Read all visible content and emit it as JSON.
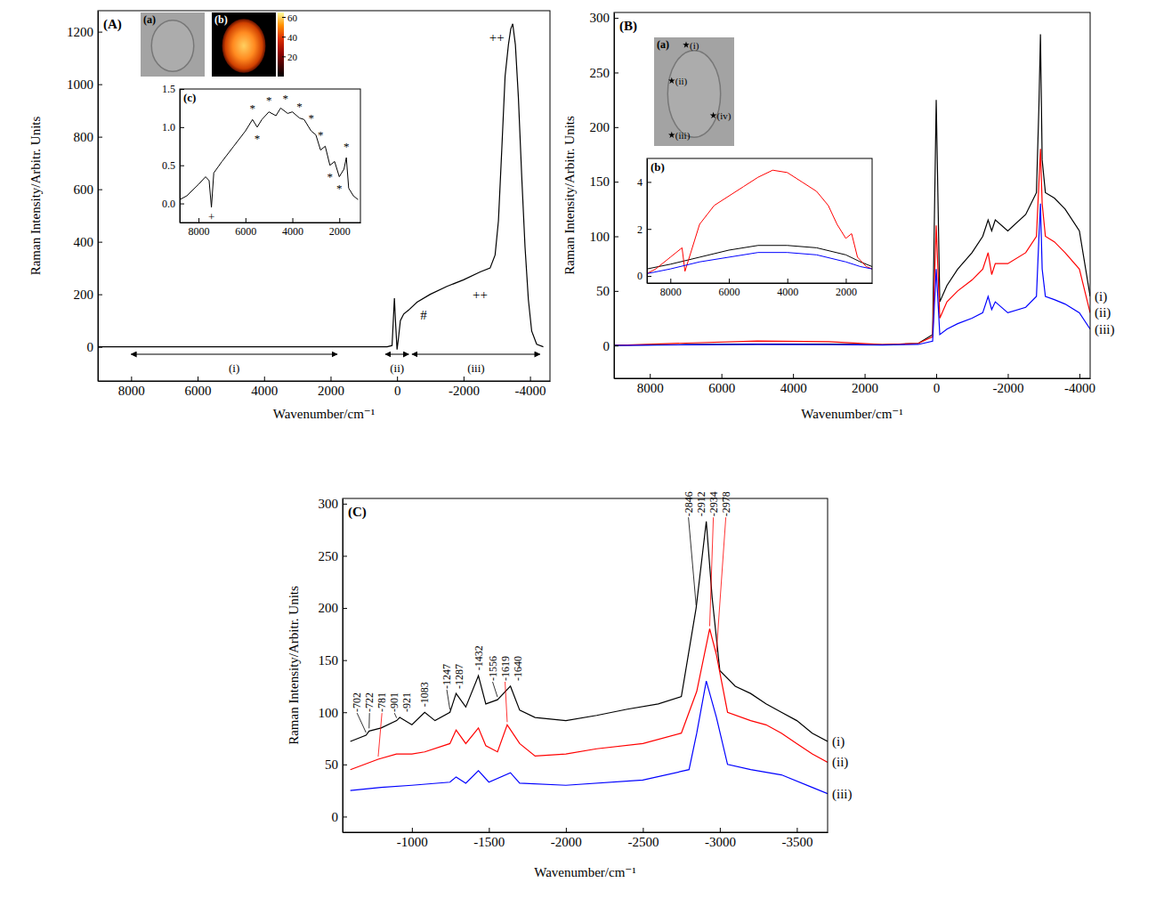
{
  "chart_data": [
    {
      "type": "line",
      "panel": "(A)",
      "x_label": "Wavenumber/cm⁻¹",
      "y_label": "Raman Intensity/Arbitr. Units",
      "xlim": [
        9000,
        -4600
      ],
      "ylim": [
        -130,
        1280
      ],
      "xticks": [
        8000,
        6000,
        4000,
        2000,
        0,
        -2000,
        -4000
      ],
      "yticks": [
        0,
        200,
        400,
        600,
        800,
        1000,
        1200
      ],
      "series": [
        {
          "color": "#000000",
          "x": [
            9000,
            7000,
            5000,
            3000,
            1000,
            300,
            150,
            80,
            40,
            0,
            -40,
            -100,
            -200,
            -350,
            -600,
            -1000,
            -1500,
            -2000,
            -2500,
            -2800,
            -2950,
            -3050,
            -3150,
            -3250,
            -3350,
            -3420,
            -3480,
            -3560,
            -3650,
            -3750,
            -3850,
            -3950,
            -4050,
            -4200,
            -4400
          ],
          "values": [
            0,
            0,
            0,
            0,
            0,
            0,
            5,
            185,
            80,
            -10,
            30,
            100,
            125,
            140,
            170,
            200,
            230,
            255,
            285,
            300,
            350,
            480,
            750,
            1030,
            1150,
            1210,
            1230,
            1150,
            950,
            650,
            380,
            180,
            60,
            10,
            0
          ]
        }
      ],
      "annotations": [
        {
          "text": "#",
          "x": -800,
          "y": 120
        },
        {
          "text": "++",
          "x": -3000,
          "y": 1180
        },
        {
          "text": "++",
          "x": -2500,
          "y": 200
        }
      ],
      "regions": [
        {
          "label": "(i)",
          "from": 8000,
          "to": 1800
        },
        {
          "label": "(ii)",
          "from": 350,
          "to": -350
        },
        {
          "label": "(iii)",
          "from": -450,
          "to": -4300
        }
      ],
      "micrograph": {
        "label": "(a)"
      },
      "raman_map": {
        "label": "(b)",
        "colorbar_range": [
          0,
          65
        ],
        "colorbar_ticks": [
          20,
          40,
          60
        ]
      }
    },
    {
      "type": "line",
      "panel": "(c)",
      "xlim": [
        8800,
        1100
      ],
      "ylim": [
        -0.25,
        1.5
      ],
      "xticks": [
        8000,
        6000,
        4000,
        2000
      ],
      "yticks": [
        {
          "value": 0,
          "label": "0.0"
        },
        0.5,
        {
          "value": 1,
          "label": "1.0"
        },
        1.5
      ],
      "series": [
        {
          "color": "#000000",
          "x": [
            8800,
            8500,
            8000,
            7700,
            7550,
            7450,
            7350,
            7000,
            6500,
            6000,
            5700,
            5500,
            5300,
            5000,
            4700,
            4500,
            4200,
            4000,
            3700,
            3500,
            3200,
            3000,
            2800,
            2600,
            2400,
            2200,
            2000,
            1800,
            1700,
            1600,
            1400,
            1200
          ],
          "values": [
            0.05,
            0.1,
            0.25,
            0.35,
            0.3,
            -0.05,
            0.4,
            0.55,
            0.75,
            0.95,
            1.1,
            1.0,
            1.1,
            1.2,
            1.15,
            1.25,
            1.18,
            1.2,
            1.12,
            1.1,
            0.95,
            0.9,
            0.7,
            0.75,
            0.5,
            0.55,
            0.35,
            0.45,
            0.6,
            0.2,
            0.1,
            0.05
          ]
        }
      ],
      "annotations": [
        {
          "text": "*",
          "x": 5700,
          "y": 1.25
        },
        {
          "text": "*",
          "x": 5500,
          "y": 0.85
        },
        {
          "text": "*",
          "x": 5000,
          "y": 1.35
        },
        {
          "text": "*",
          "x": 4300,
          "y": 1.38
        },
        {
          "text": "*",
          "x": 3700,
          "y": 1.27
        },
        {
          "text": "*",
          "x": 3200,
          "y": 1.12
        },
        {
          "text": "*",
          "x": 2800,
          "y": 0.9
        },
        {
          "text": "*",
          "x": 2400,
          "y": 0.35
        },
        {
          "text": "*",
          "x": 2000,
          "y": 0.2
        },
        {
          "text": "*",
          "x": 1700,
          "y": 0.75
        },
        {
          "text": "+",
          "x": 7450,
          "y": -0.17
        }
      ]
    },
    {
      "type": "line",
      "panel": "(B)",
      "x_label": "Wavenumber/cm⁻¹",
      "y_label": "Raman Intensity/Arbitr. Units",
      "xlim": [
        9000,
        -4300
      ],
      "ylim": [
        -30,
        305
      ],
      "xticks": [
        8000,
        6000,
        4000,
        2000,
        0,
        -2000,
        -4000
      ],
      "yticks": [
        0,
        50,
        100,
        150,
        200,
        250,
        300
      ],
      "series": [
        {
          "name": "(i)",
          "color": "#000000",
          "x": [
            9000,
            7000,
            5000,
            3000,
            1500,
            500,
            100,
            0,
            -100,
            -300,
            -600,
            -1000,
            -1300,
            -1450,
            -1550,
            -1650,
            -2000,
            -2500,
            -2800,
            -2870,
            -2912,
            -2960,
            -3050,
            -3300,
            -3600,
            -4000,
            -4300
          ],
          "values": [
            0.3,
            0.8,
            1.3,
            1.2,
            0.6,
            2,
            10,
            225,
            40,
            55,
            70,
            85,
            100,
            115,
            105,
            115,
            105,
            120,
            140,
            220,
            285,
            170,
            140,
            135,
            125,
            105,
            45
          ]
        },
        {
          "name": "(ii)",
          "color": "#ff0000",
          "x": [
            9000,
            7000,
            5000,
            3000,
            1500,
            500,
            100,
            0,
            -100,
            -300,
            -600,
            -1000,
            -1300,
            -1450,
            -1550,
            -1650,
            -2000,
            -2500,
            -2800,
            -2870,
            -2912,
            -2960,
            -3050,
            -3300,
            -3600,
            -4000,
            -4300
          ],
          "values": [
            0.1,
            2.2,
            4.2,
            3.6,
            0.8,
            2,
            8,
            110,
            25,
            40,
            50,
            60,
            70,
            85,
            65,
            75,
            75,
            85,
            100,
            150,
            180,
            130,
            100,
            95,
            85,
            70,
            30
          ]
        },
        {
          "name": "(iii)",
          "color": "#0000ff",
          "x": [
            9000,
            7000,
            5000,
            3000,
            1500,
            500,
            100,
            0,
            -100,
            -300,
            -600,
            -1000,
            -1300,
            -1450,
            -1550,
            -1650,
            -2000,
            -2500,
            -2800,
            -2870,
            -2912,
            -2960,
            -3050,
            -3300,
            -3600,
            -4000,
            -4300
          ],
          "values": [
            0.1,
            0.6,
            1.0,
            0.9,
            0.4,
            1,
            4,
            70,
            10,
            15,
            20,
            25,
            30,
            45,
            33,
            40,
            30,
            35,
            45,
            100,
            130,
            70,
            45,
            42,
            38,
            30,
            15
          ]
        }
      ],
      "micrograph": {
        "label": "(a)",
        "points": [
          "(i)",
          "(ii)",
          "(iii)",
          "(iv)"
        ]
      }
    },
    {
      "type": "line",
      "panel": "(b)",
      "xlim": [
        8800,
        1100
      ],
      "ylim": [
        -0.3,
        5
      ],
      "xticks": [
        8000,
        6000,
        4000,
        2000
      ],
      "yticks": [
        0,
        2,
        4
      ],
      "series": [
        {
          "color": "#000000",
          "x": [
            8800,
            8000,
            7000,
            6000,
            5000,
            4000,
            3000,
            2000,
            1500,
            1100
          ],
          "values": [
            0.3,
            0.5,
            0.8,
            1.1,
            1.3,
            1.3,
            1.2,
            0.9,
            0.6,
            0.4
          ]
        },
        {
          "color": "#ff0000",
          "x": [
            8800,
            8500,
            8000,
            7600,
            7500,
            7400,
            7000,
            6500,
            6000,
            5500,
            5000,
            4500,
            4000,
            3500,
            3000,
            2600,
            2300,
            2000,
            1800,
            1600,
            1300,
            1100
          ],
          "values": [
            0.1,
            0.3,
            0.8,
            1.2,
            0.2,
            0.6,
            2.2,
            3.0,
            3.4,
            3.8,
            4.2,
            4.5,
            4.4,
            4.0,
            3.6,
            3.0,
            2.2,
            1.6,
            1.8,
            0.8,
            0.4,
            0.3
          ]
        },
        {
          "color": "#0000ff",
          "x": [
            8800,
            8000,
            7000,
            6000,
            5000,
            4000,
            3000,
            2000,
            1500,
            1100
          ],
          "values": [
            0.1,
            0.3,
            0.6,
            0.8,
            1.0,
            1.0,
            0.9,
            0.6,
            0.4,
            0.3
          ]
        }
      ]
    },
    {
      "type": "line",
      "panel": "(C)",
      "x_label": "Wavenumber/cm⁻¹",
      "y_label": "Raman Intensity/Arbitr. Units",
      "xlim": [
        -550,
        -3700
      ],
      "ylim": [
        -15,
        305
      ],
      "xticks": [
        -1000,
        -1500,
        -2000,
        -2500,
        -3000,
        -3500
      ],
      "yticks": [
        0,
        50,
        100,
        150,
        200,
        250,
        300
      ],
      "series": [
        {
          "name": "(i)",
          "color": "#000000",
          "x": [
            -600,
            -702,
            -722,
            -800,
            -901,
            -921,
            -1000,
            -1083,
            -1150,
            -1247,
            -1287,
            -1350,
            -1432,
            -1480,
            -1556,
            -1640,
            -1700,
            -1800,
            -2000,
            -2200,
            -2400,
            -2600,
            -2750,
            -2846,
            -2912,
            -2950,
            -3000,
            -3100,
            -3200,
            -3300,
            -3400,
            -3500,
            -3600,
            -3700
          ],
          "values": [
            72,
            78,
            82,
            85,
            92,
            95,
            88,
            100,
            92,
            100,
            118,
            105,
            135,
            108,
            112,
            125,
            102,
            95,
            92,
            97,
            103,
            108,
            115,
            200,
            283,
            210,
            140,
            125,
            118,
            108,
            100,
            92,
            80,
            72
          ]
        },
        {
          "name": "(ii)",
          "color": "#ff0000",
          "x": [
            -600,
            -781,
            -900,
            -1000,
            -1083,
            -1247,
            -1287,
            -1350,
            -1432,
            -1480,
            -1556,
            -1619,
            -1700,
            -1800,
            -2000,
            -2200,
            -2500,
            -2750,
            -2850,
            -2934,
            -2978,
            -3050,
            -3200,
            -3300,
            -3400,
            -3500,
            -3600,
            -3700
          ],
          "values": [
            45,
            55,
            60,
            60,
            62,
            70,
            83,
            70,
            85,
            68,
            62,
            88,
            70,
            58,
            60,
            65,
            70,
            80,
            120,
            180,
            155,
            100,
            92,
            88,
            80,
            70,
            60,
            52
          ]
        },
        {
          "name": "(iii)",
          "color": "#0000ff",
          "x": [
            -600,
            -800,
            -1000,
            -1247,
            -1287,
            -1350,
            -1432,
            -1500,
            -1640,
            -1700,
            -2000,
            -2500,
            -2800,
            -2850,
            -2912,
            -2978,
            -3050,
            -3200,
            -3400,
            -3600,
            -3700
          ],
          "values": [
            25,
            28,
            30,
            33,
            38,
            32,
            44,
            33,
            42,
            32,
            30,
            35,
            45,
            80,
            130,
            95,
            50,
            45,
            40,
            28,
            22
          ]
        }
      ],
      "peak_labels": [
        {
          "value": -702,
          "series": "(i)"
        },
        {
          "value": -722,
          "series": "(i)"
        },
        {
          "value": -901,
          "series": "(i)"
        },
        {
          "value": -921,
          "series": "(i)"
        },
        {
          "value": -1083,
          "series": "(i)"
        },
        {
          "value": -1247,
          "series": "(i)"
        },
        {
          "value": -1287,
          "series": "(i)"
        },
        {
          "value": -1432,
          "series": "(i)"
        },
        {
          "value": -1556,
          "series": "(i)"
        },
        {
          "value": -1640,
          "series": "(i)"
        },
        {
          "value": -2846,
          "series": "(i)"
        },
        {
          "value": -2912,
          "series": "(i)"
        },
        {
          "value": -781,
          "series": "(ii)"
        },
        {
          "value": -1619,
          "series": "(ii)"
        },
        {
          "value": -2934,
          "series": "(ii)"
        },
        {
          "value": -2978,
          "series": "(ii)"
        }
      ]
    }
  ]
}
